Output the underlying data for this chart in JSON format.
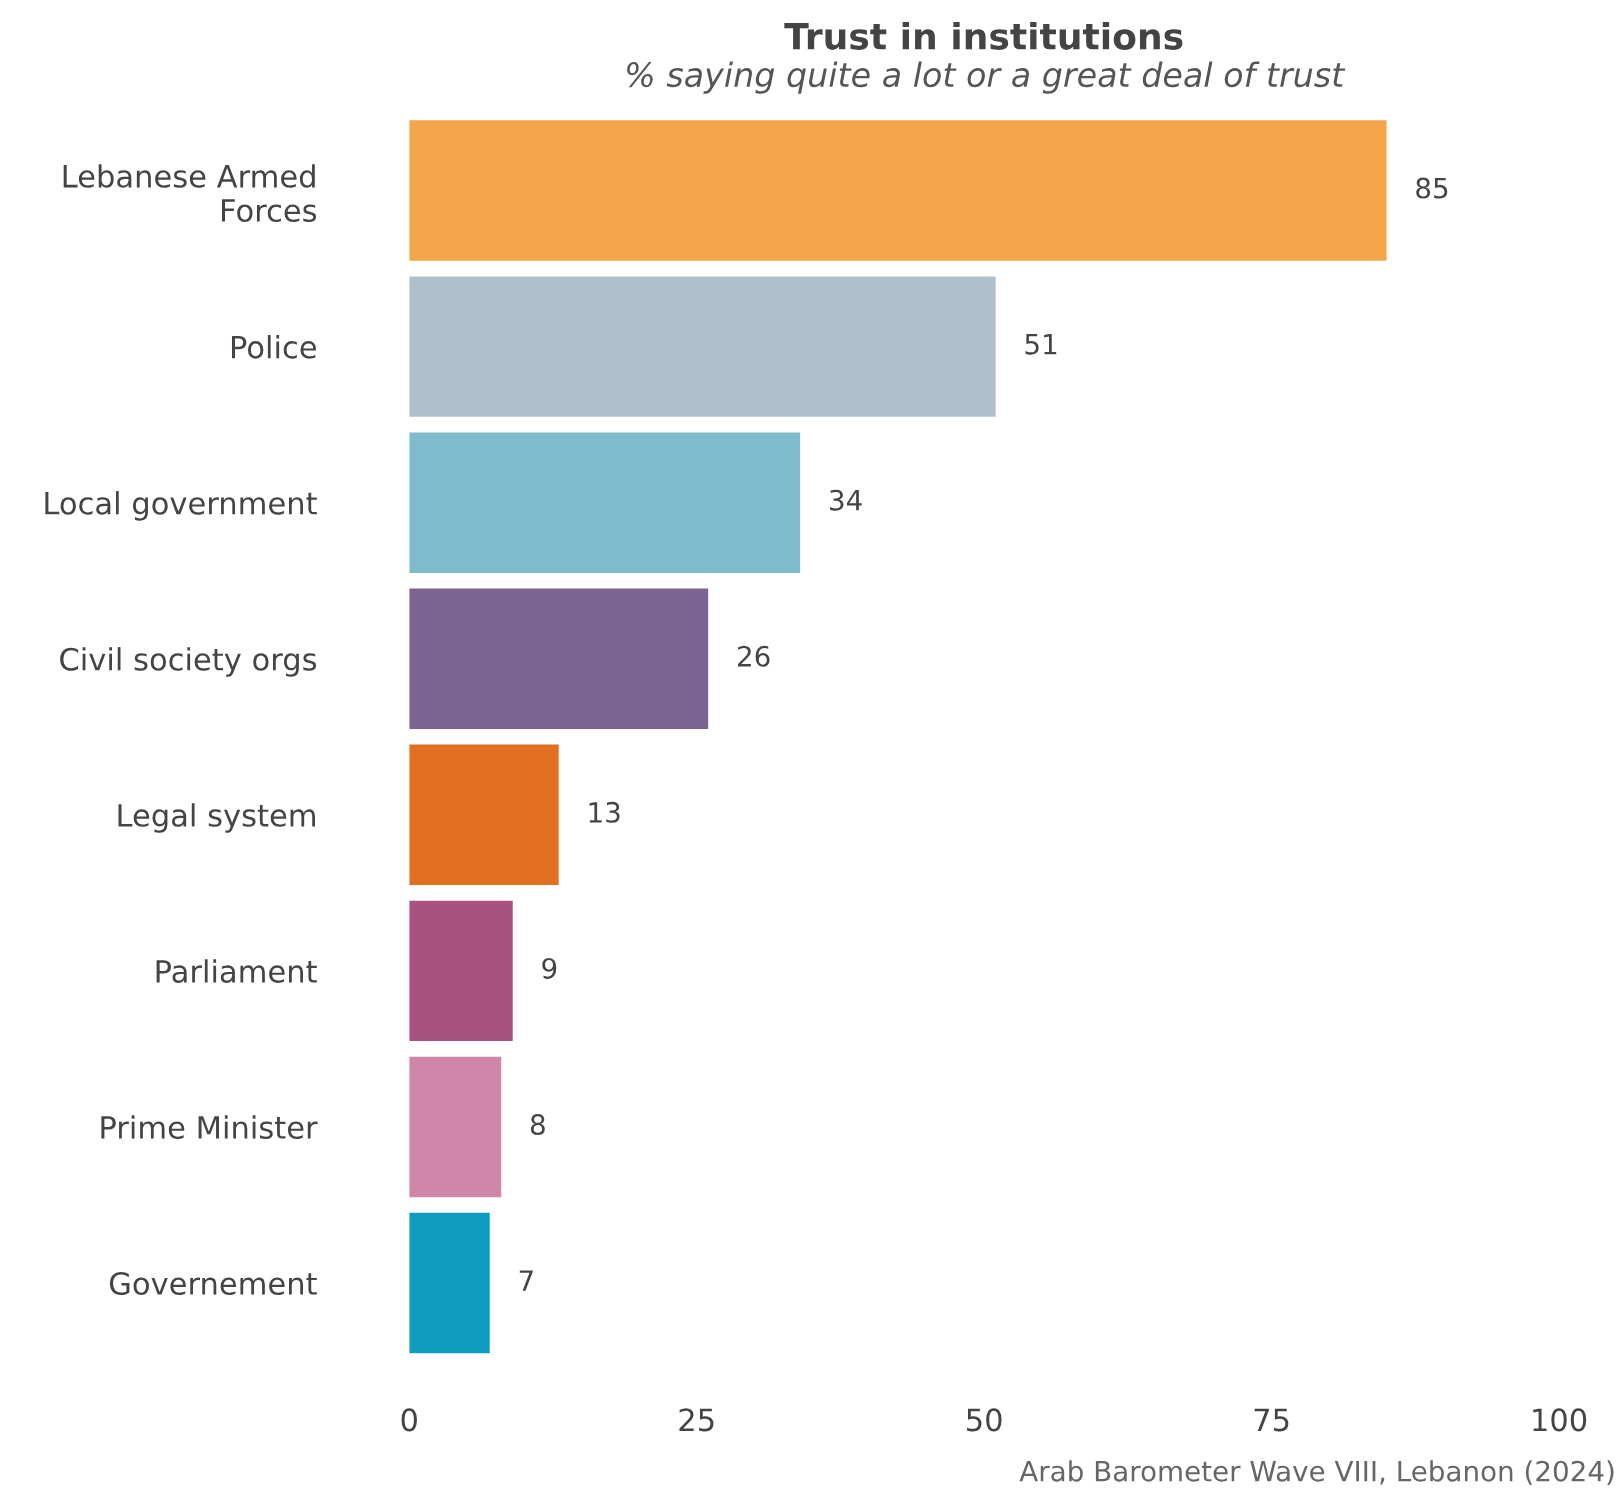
{
  "chart_data": {
    "type": "bar",
    "orientation": "horizontal",
    "title": "Trust in institutions",
    "subtitle": "% saying quite a lot or a great deal of trust",
    "categories": [
      "Lebanese Armed\nForces",
      "Police",
      "Local government",
      "Civil society orgs",
      "Legal system",
      "Parliament",
      "Prime Minister",
      "Governement"
    ],
    "values": [
      85,
      51,
      34,
      26,
      13,
      9,
      8,
      7
    ],
    "colors": [
      "#f5a54a",
      "#adc0cc",
      "#7fbccb",
      "#7b6490",
      "#e07020",
      "#a9527f",
      "#cf86a9",
      "#0e9dc0"
    ],
    "xlim": [
      0,
      100
    ],
    "xticks": [
      0,
      25,
      50,
      75,
      100
    ],
    "grid": false,
    "legend": false,
    "data_labels": true,
    "annotations": [
      "Arab Barometer Wave VIII, Lebanon (2024)"
    ]
  }
}
